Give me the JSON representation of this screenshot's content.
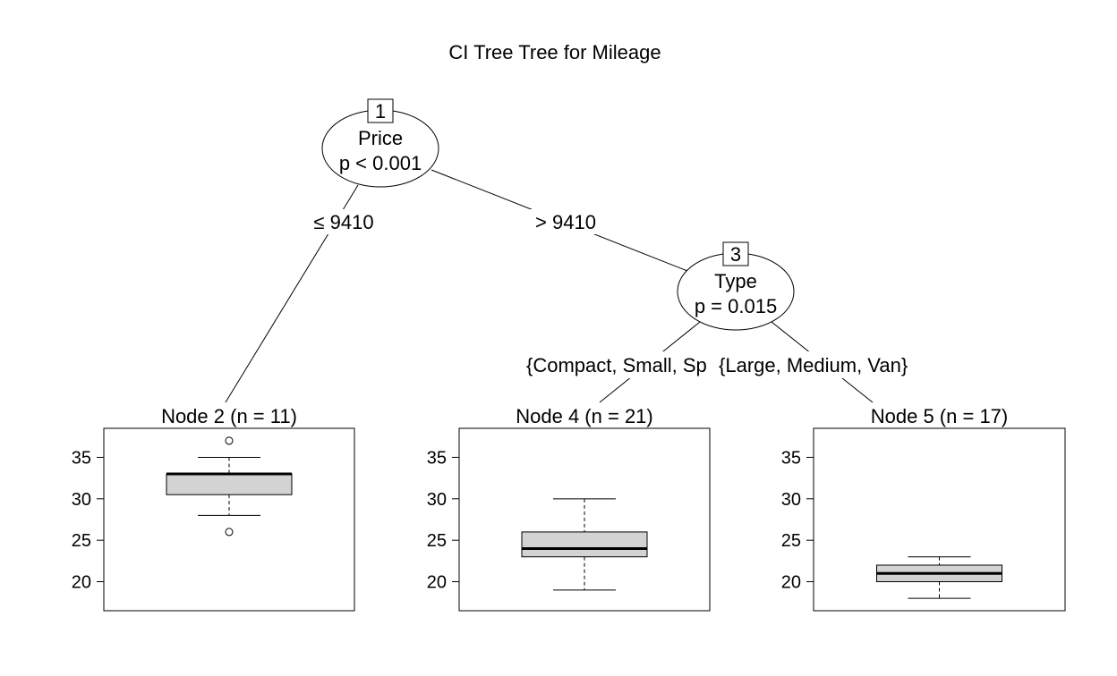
{
  "title": "CI Tree Tree for Mileage",
  "inner_nodes": [
    {
      "id": "1",
      "label": "Price",
      "pvalue": "p < 0.001"
    },
    {
      "id": "3",
      "label": "Type",
      "pvalue": "p = 0.015"
    }
  ],
  "edges": [
    {
      "from": "1",
      "to": "2",
      "label": "≤ 9410"
    },
    {
      "from": "1",
      "to": "3",
      "label": "> 9410"
    },
    {
      "from": "3",
      "to": "4",
      "label": "{Compact, Small, Sp"
    },
    {
      "from": "3",
      "to": "5",
      "label": "{Large, Medium, Van}"
    }
  ],
  "chart_data": {
    "type": "boxplot",
    "title": "CI Tree Tree for Mileage",
    "y_ticks": [
      20,
      25,
      30,
      35
    ],
    "ylim": [
      16.5,
      38.5
    ],
    "panels": [
      {
        "title": "Node 2 (n = 11)",
        "min": 28,
        "q1": 30.5,
        "median": 33,
        "q3": 33,
        "max": 35,
        "outliers": [
          37,
          26
        ]
      },
      {
        "title": "Node 4 (n = 21)",
        "min": 19,
        "q1": 23,
        "median": 24,
        "q3": 26,
        "max": 30,
        "outliers": []
      },
      {
        "title": "Node 5 (n = 17)",
        "min": 18,
        "q1": 20,
        "median": 21,
        "q3": 22,
        "max": 23,
        "outliers": []
      }
    ]
  }
}
